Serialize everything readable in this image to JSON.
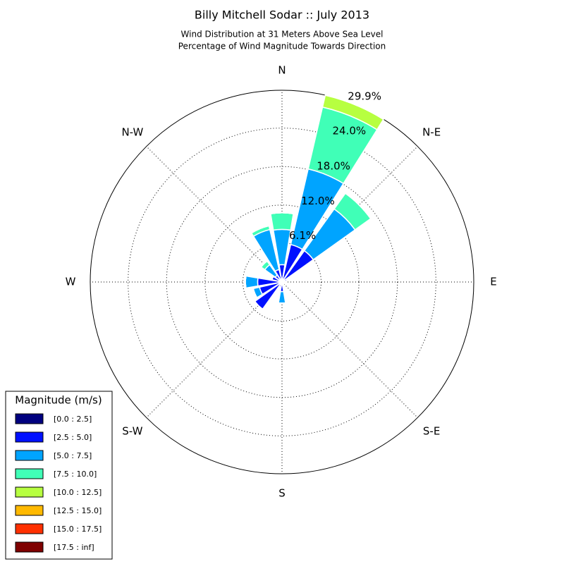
{
  "chart_data": {
    "type": "windrose",
    "title": "Billy Mitchell Sodar :: July 2013",
    "subtitle": [
      "Wind Distribution at 31 Meters Above Sea Level",
      "Percentage of Wind Magnitude Towards Direction"
    ],
    "categories": [
      "N",
      null,
      "N-E",
      null,
      "E",
      null,
      "S-E",
      null,
      "S",
      null,
      "S-W",
      null,
      "W",
      null,
      "N-W",
      null
    ],
    "rlim": [
      0,
      29.9
    ],
    "rticks": [
      {
        "value": 6.1,
        "label": "6.1%"
      },
      {
        "value": 12.0,
        "label": "12.0%"
      },
      {
        "value": 18.0,
        "label": "18.0%"
      },
      {
        "value": 24.0,
        "label": "24.0%"
      },
      {
        "value": 29.9,
        "label": "29.9%"
      }
    ],
    "grid": true,
    "legend_title": "Magnitude (m/s)",
    "legend_position": "lower left",
    "series": [
      {
        "name": "[0.0 : 2.5]",
        "color": "#00007f",
        "values": [
          0.3,
          0.3,
          0.3,
          0.3,
          0.2,
          0.2,
          0.2,
          0.2,
          0.3,
          0.3,
          0.3,
          0.3,
          0.3,
          0.3,
          0.3,
          0.3
        ]
      },
      {
        "name": "[2.5 : 5.0]",
        "color": "#0010ff",
        "values": [
          2.4,
          5.7,
          5.7,
          0.5,
          0.3,
          0.2,
          0.2,
          0.3,
          1.2,
          0.5,
          4.9,
          3.3,
          3.5,
          1.3,
          1.0,
          1.7
        ]
      },
      {
        "name": "[5.0 : 7.5]",
        "color": "#00a4ff",
        "values": [
          5.5,
          12.1,
          8.0,
          0,
          0,
          0,
          0,
          0,
          1.8,
          0,
          0,
          1.0,
          1.9,
          0,
          2.0,
          6.4
        ]
      },
      {
        "name": "[7.5 : 10.0]",
        "color": "#40ffb7",
        "values": [
          2.6,
          9.9,
          3.0,
          0,
          0,
          0,
          0,
          0,
          0,
          0,
          0,
          0,
          0,
          0,
          0.7,
          0.6
        ]
      },
      {
        "name": "[10.0 : 12.5]",
        "color": "#b7ff40",
        "values": [
          0,
          1.9,
          0,
          0,
          0,
          0,
          0,
          0,
          0,
          0,
          0,
          0,
          0,
          0,
          0,
          0
        ]
      },
      {
        "name": "[12.5 : 15.0]",
        "color": "#ffb900",
        "values": [
          0,
          0,
          0,
          0,
          0,
          0,
          0,
          0,
          0,
          0,
          0,
          0,
          0,
          0,
          0,
          0
        ]
      },
      {
        "name": "[15.0 : 17.5]",
        "color": "#ff3000",
        "values": [
          0,
          0,
          0,
          0,
          0,
          0,
          0,
          0,
          0,
          0,
          0,
          0,
          0,
          0,
          0,
          0
        ]
      },
      {
        "name": "[17.5 : inf]",
        "color": "#7f0000",
        "values": [
          0,
          0,
          0,
          0,
          0,
          0,
          0,
          0,
          0,
          0,
          0,
          0,
          0,
          0,
          0,
          0
        ]
      }
    ]
  }
}
